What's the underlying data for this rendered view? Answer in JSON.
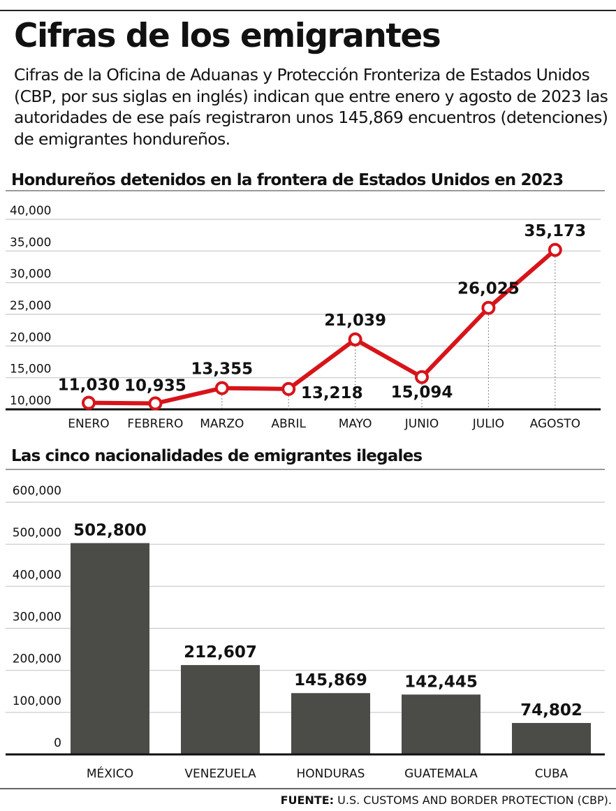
{
  "header": {
    "title": "Cifras de los emigrantes",
    "intro": "Cifras de la Oficina de Aduanas y Protección Fronteriza de Estados Unidos (CBP, por sus siglas en inglés) indican que entre enero y agosto de 2023 las autoridades de ese país registraron unos 145,869 encuentros (detenciones) de emigrantes hondureños."
  },
  "chart_data": [
    {
      "type": "line",
      "title": "Hondureños detenidos en la frontera de Estados Unidos en 2023",
      "categories": [
        "ENERO",
        "FEBRERO",
        "MARZO",
        "ABRIL",
        "MAYO",
        "JUNIO",
        "JULIO",
        "AGOSTO"
      ],
      "values": [
        11030,
        10935,
        13355,
        13218,
        21039,
        15094,
        26025,
        35173
      ],
      "data_labels": [
        "11,030",
        "10,935",
        "13,355",
        "13,218",
        "21,039",
        "15,094",
        "26,025",
        "35,173"
      ],
      "yticks": [
        "10,000",
        "15,000",
        "20,000",
        "25,000",
        "30,000",
        "35,000",
        "40,000"
      ],
      "ylim": [
        10000,
        40000
      ],
      "grid": true,
      "color": "#d7141a"
    },
    {
      "type": "bar",
      "title": "Las cinco nacionalidades de emigrantes ilegales",
      "categories": [
        "MÉXICO",
        "VENEZUELA",
        "HONDURAS",
        "GUATEMALA",
        "CUBA"
      ],
      "values": [
        502800,
        212607,
        145869,
        142445,
        74802
      ],
      "data_labels": [
        "502,800",
        "212,607",
        "145,869",
        "142,445",
        "74,802"
      ],
      "yticks": [
        "0",
        "100,000",
        "200,000",
        "300,000",
        "400,000",
        "500,000",
        "600,000"
      ],
      "ylim": [
        0,
        600000
      ],
      "grid": true,
      "color": "#4b4b47"
    }
  ],
  "source": {
    "label": "FUENTE:",
    "text": "U.S. CUSTOMS AND BORDER PROTECTION (CBP)."
  }
}
